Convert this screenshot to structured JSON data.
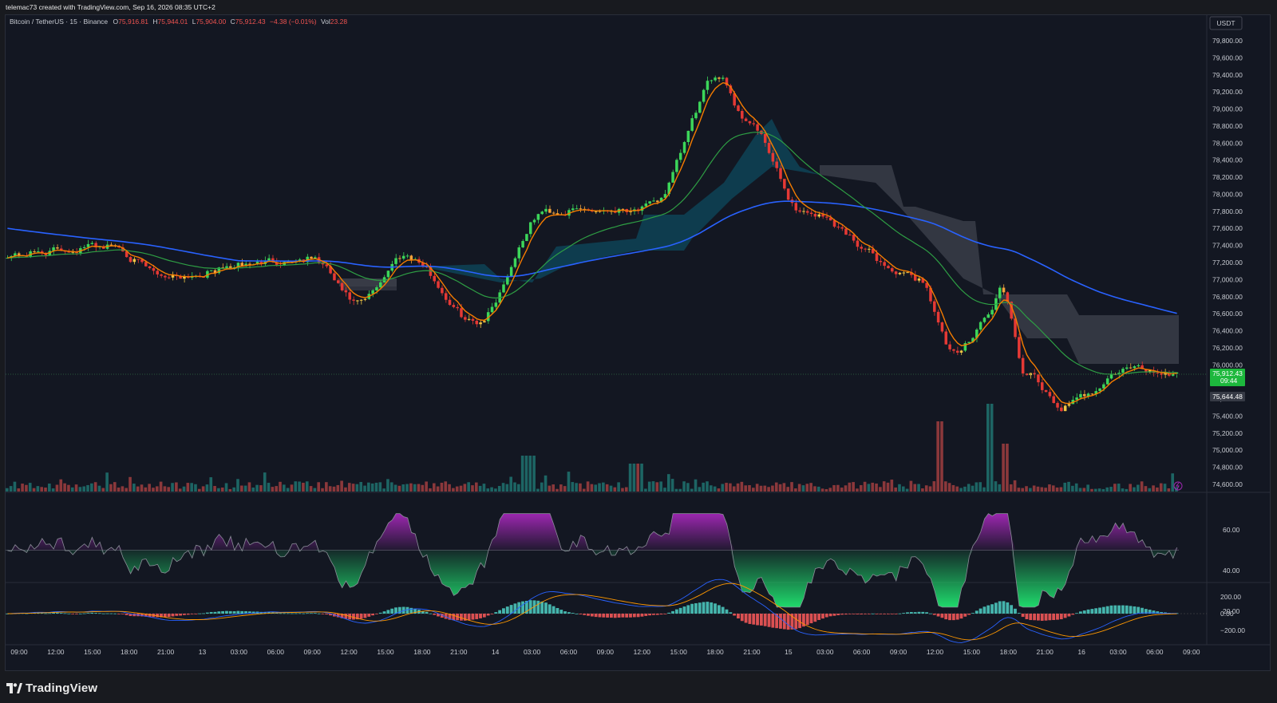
{
  "header": {
    "attribution": "telemac73 created with TradingView.com, Sep 16, 2026 08:35 UTC+2"
  },
  "legend": {
    "symbol": "Bitcoin / TetherUS · 15 · Binance",
    "o_label": "O",
    "o_value": "75,916.81",
    "h_label": "H",
    "h_value": "75,944.01",
    "l_label": "L",
    "l_value": "75,904.00",
    "c_label": "C",
    "c_value": "75,912.43",
    "change": "−4.38 (−0.01%)",
    "vol_label": "Vol",
    "vol_value": "23.28"
  },
  "currency_badge": "USDT",
  "price_axis": {
    "ticks": [
      "79,800.00",
      "79,600.00",
      "79,400.00",
      "79,200.00",
      "79,000.00",
      "78,800.00",
      "78,600.00",
      "78,400.00",
      "78,200.00",
      "78,000.00",
      "77,800.00",
      "77,600.00",
      "77,400.00",
      "77,200.00",
      "77,000.00",
      "76,800.00",
      "76,600.00",
      "76,400.00",
      "76,200.00",
      "76,000.00",
      "75,800.00",
      "75,600.00",
      "75,400.00",
      "75,200.00",
      "75,000.00",
      "74,800.00",
      "74,600.00"
    ],
    "current_price": "75,912.43",
    "countdown": "09:44",
    "marker_price": "75,644.48"
  },
  "rsi_axis": {
    "ticks": [
      "60.00",
      "40.00",
      "20.00"
    ]
  },
  "macd_axis": {
    "ticks": [
      "200.00",
      "0.00",
      "−200.00"
    ]
  },
  "time_axis": {
    "ticks": [
      "09:00",
      "12:00",
      "15:00",
      "18:00",
      "21:00",
      "13",
      "03:00",
      "06:00",
      "09:00",
      "12:00",
      "15:00",
      "18:00",
      "21:00",
      "14",
      "03:00",
      "06:00",
      "09:00",
      "12:00",
      "15:00",
      "18:00",
      "21:00",
      "15",
      "03:00",
      "06:00",
      "09:00",
      "12:00",
      "15:00",
      "18:00",
      "21:00",
      "16",
      "03:00",
      "06:00",
      "09:00"
    ]
  },
  "footer": {
    "brand": "TradingView"
  },
  "colors": {
    "background": "#131722",
    "up": "#26a69a",
    "down": "#ef5350",
    "ema_orange": "#f57c00",
    "sma_green": "#2e9e44",
    "sma_blue": "#2962ff",
    "rsi_purple": "#9c27b0",
    "rsi_green": "#1fd96b",
    "price_badge": "#1db83d"
  },
  "chart_data": {
    "type": "candlestick",
    "symbol": "BTCUSDT",
    "interval": "15",
    "exchange": "Binance",
    "ylim": [
      74500,
      79900
    ],
    "last_close": 75912.43,
    "price_keypoints": [
      {
        "t": 0.0,
        "p": 77300
      },
      {
        "t": 0.09,
        "p": 77400
      },
      {
        "t": 0.13,
        "p": 77050
      },
      {
        "t": 0.26,
        "p": 77250
      },
      {
        "t": 0.3,
        "p": 76700
      },
      {
        "t": 0.34,
        "p": 77300
      },
      {
        "t": 0.4,
        "p": 76500
      },
      {
        "t": 0.46,
        "p": 77800
      },
      {
        "t": 0.55,
        "p": 77850
      },
      {
        "t": 0.61,
        "p": 79400
      },
      {
        "t": 0.63,
        "p": 78900
      },
      {
        "t": 0.68,
        "p": 77800
      },
      {
        "t": 0.78,
        "p": 77000
      },
      {
        "t": 0.81,
        "p": 76100
      },
      {
        "t": 0.84,
        "p": 76600
      },
      {
        "t": 0.85,
        "p": 76900
      },
      {
        "t": 0.87,
        "p": 75900
      },
      {
        "t": 0.9,
        "p": 75500
      },
      {
        "t": 0.96,
        "p": 75950
      },
      {
        "t": 1.0,
        "p": 75912
      }
    ],
    "indicators": [
      "EMA",
      "SMA (green)",
      "SMA (blue)",
      "Cloud band",
      "Volume",
      "RSI",
      "MACD"
    ],
    "rsi_range": [
      20,
      70
    ],
    "macd_range": [
      -300,
      300
    ]
  }
}
